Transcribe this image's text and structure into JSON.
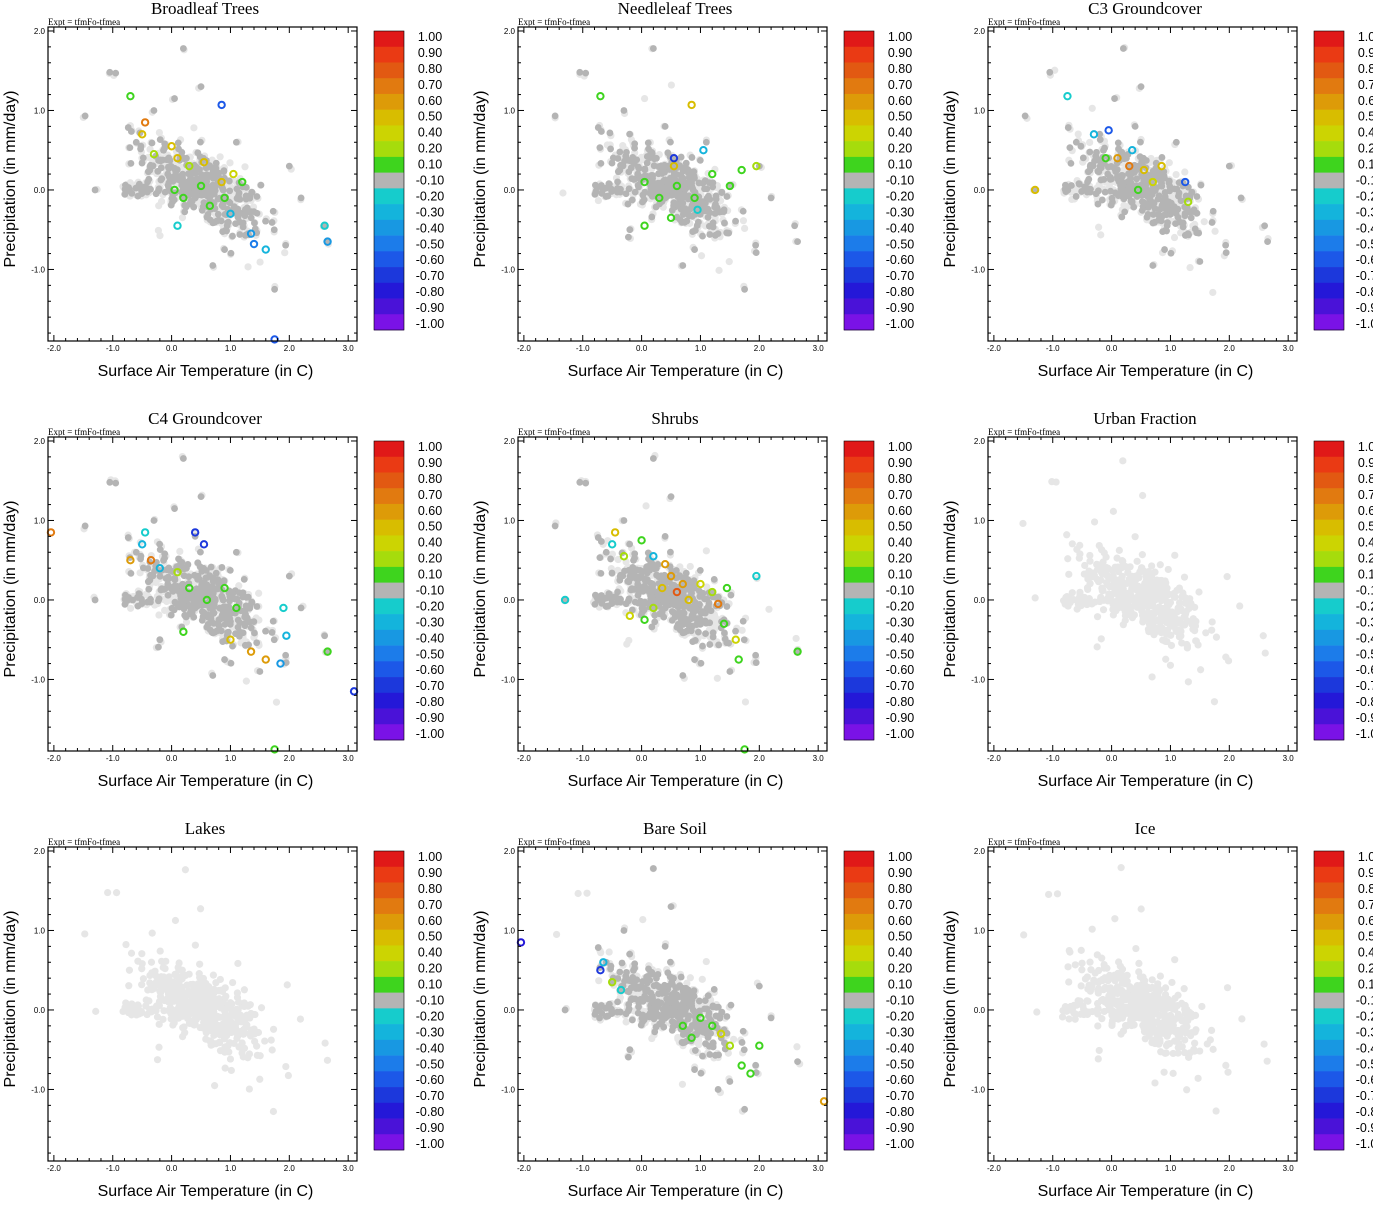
{
  "figure": {
    "expt_label": "Expt = tfmFo-tfmea",
    "xlabel": "Surface Air Temperature (in C)",
    "ylabel": "Precipitation (in mm/day)"
  },
  "chart_data": {
    "type": "scatter",
    "xlim": [
      -2.1,
      3.15
    ],
    "ylim": [
      -1.9,
      2.05
    ],
    "x_ticks": [
      -2.0,
      -1.0,
      0.0,
      1.0,
      2.0,
      3.0
    ],
    "x_tick_labels": [
      "-2.0",
      "-1.0",
      "0.0",
      "1.0",
      "2.0",
      "3.0"
    ],
    "y_ticks": [
      -1.0,
      0.0,
      1.0,
      2.0
    ],
    "y_tick_labels": [
      "-1.0",
      "0.0",
      "1.0",
      "2.0"
    ],
    "colorbar": {
      "labels": [
        "1.00",
        "0.90",
        "0.80",
        "0.70",
        "0.60",
        "0.50",
        "0.40",
        "0.20",
        "0.10",
        "-0.10",
        "-0.20",
        "-0.30",
        "-0.40",
        "-0.50",
        "-0.60",
        "-0.70",
        "-0.80",
        "-0.90",
        "-1.00"
      ],
      "colors": [
        "#e01818",
        "#ea3a14",
        "#e25912",
        "#e17a10",
        "#dd9b08",
        "#d8bd00",
        "#ccd402",
        "#a6dc0c",
        "#3ed41e",
        "#b4b4b4",
        "#16cccc",
        "#14b4dc",
        "#1898e2",
        "#1c7cea",
        "#1c58e8",
        "#1c38dc",
        "#2418d8",
        "#4a12d8",
        "#7a12e6"
      ]
    },
    "panels": [
      {
        "title": "Broadleaf Trees",
        "highlights": [
          {
            "x": -0.7,
            "y": 1.18,
            "v": 0.15
          },
          {
            "x": -0.45,
            "y": 0.85,
            "v": 0.65
          },
          {
            "x": -0.5,
            "y": 0.7,
            "v": 0.5
          },
          {
            "x": -0.3,
            "y": 0.45,
            "v": 0.3
          },
          {
            "x": 0.0,
            "y": 0.55,
            "v": 0.45
          },
          {
            "x": 0.1,
            "y": 0.4,
            "v": 0.5
          },
          {
            "x": 0.3,
            "y": 0.3,
            "v": 0.2
          },
          {
            "x": 0.55,
            "y": 0.35,
            "v": 0.5
          },
          {
            "x": 0.85,
            "y": 0.1,
            "v": 0.5
          },
          {
            "x": 1.05,
            "y": 0.2,
            "v": 0.4
          },
          {
            "x": 0.85,
            "y": 1.07,
            "v": -0.55
          },
          {
            "x": 0.05,
            "y": 0.0,
            "v": 0.15
          },
          {
            "x": 0.2,
            "y": -0.1,
            "v": 0.1
          },
          {
            "x": 0.5,
            "y": 0.05,
            "v": 0.15
          },
          {
            "x": 0.65,
            "y": -0.2,
            "v": 0.1
          },
          {
            "x": 0.9,
            "y": -0.1,
            "v": 0.12
          },
          {
            "x": 1.2,
            "y": 0.1,
            "v": 0.15
          },
          {
            "x": 0.1,
            "y": -0.45,
            "v": -0.2
          },
          {
            "x": 1.0,
            "y": -0.3,
            "v": -0.3
          },
          {
            "x": 1.35,
            "y": -0.55,
            "v": -0.4
          },
          {
            "x": 1.4,
            "y": -0.68,
            "v": -0.5
          },
          {
            "x": 1.6,
            "y": -0.75,
            "v": -0.3
          },
          {
            "x": 2.6,
            "y": -0.45,
            "v": -0.25
          },
          {
            "x": 2.65,
            "y": -0.65,
            "v": -0.45
          },
          {
            "x": 1.75,
            "y": -1.88,
            "v": -0.6
          }
        ]
      },
      {
        "title": "Needleleaf Trees",
        "highlights": [
          {
            "x": -0.7,
            "y": 1.18,
            "v": 0.15
          },
          {
            "x": 0.85,
            "y": 1.07,
            "v": 0.45
          },
          {
            "x": 0.55,
            "y": 0.3,
            "v": 0.5
          },
          {
            "x": 1.05,
            "y": 0.5,
            "v": -0.3
          },
          {
            "x": 0.05,
            "y": 0.1,
            "v": 0.15
          },
          {
            "x": 0.3,
            "y": -0.1,
            "v": 0.1
          },
          {
            "x": 0.6,
            "y": 0.05,
            "v": 0.15
          },
          {
            "x": 0.9,
            "y": -0.1,
            "v": 0.12
          },
          {
            "x": 1.2,
            "y": 0.2,
            "v": 0.15
          },
          {
            "x": 1.5,
            "y": 0.05,
            "v": 0.15
          },
          {
            "x": 1.95,
            "y": 0.3,
            "v": 0.3
          },
          {
            "x": 1.7,
            "y": 0.25,
            "v": 0.15
          },
          {
            "x": 0.05,
            "y": -0.45,
            "v": 0.15
          },
          {
            "x": 0.5,
            "y": -0.35,
            "v": 0.12
          },
          {
            "x": 0.95,
            "y": -0.25,
            "v": -0.25
          },
          {
            "x": 0.55,
            "y": 0.4,
            "v": -0.7
          }
        ]
      },
      {
        "title": "C3 Groundcover",
        "highlights": [
          {
            "x": -0.75,
            "y": 1.18,
            "v": -0.2
          },
          {
            "x": -0.05,
            "y": 0.75,
            "v": -0.55
          },
          {
            "x": -0.3,
            "y": 0.7,
            "v": -0.3
          },
          {
            "x": 0.35,
            "y": 0.5,
            "v": -0.3
          },
          {
            "x": 0.3,
            "y": 0.3,
            "v": 0.65
          },
          {
            "x": 0.1,
            "y": 0.4,
            "v": 0.55
          },
          {
            "x": -0.1,
            "y": 0.4,
            "v": 0.15
          },
          {
            "x": 0.55,
            "y": 0.25,
            "v": 0.45
          },
          {
            "x": 0.7,
            "y": 0.1,
            "v": 0.4
          },
          {
            "x": 0.85,
            "y": 0.3,
            "v": 0.5
          },
          {
            "x": -1.3,
            "y": 0.0,
            "v": 0.45
          },
          {
            "x": 0.45,
            "y": 0.0,
            "v": 0.15
          },
          {
            "x": 1.25,
            "y": 0.1,
            "v": -0.6
          },
          {
            "x": 1.3,
            "y": -0.15,
            "v": 0.3
          }
        ]
      },
      {
        "title": "C4 Groundcover",
        "highlights": [
          {
            "x": -2.05,
            "y": 0.85,
            "v": 0.7
          },
          {
            "x": -0.45,
            "y": 0.85,
            "v": -0.2
          },
          {
            "x": -0.5,
            "y": 0.7,
            "v": -0.35
          },
          {
            "x": -0.35,
            "y": 0.5,
            "v": 0.65
          },
          {
            "x": -0.7,
            "y": 0.5,
            "v": 0.55
          },
          {
            "x": -0.2,
            "y": 0.4,
            "v": -0.3
          },
          {
            "x": 0.4,
            "y": 0.85,
            "v": -0.75
          },
          {
            "x": 0.55,
            "y": 0.7,
            "v": -0.7
          },
          {
            "x": 0.1,
            "y": 0.35,
            "v": 0.2
          },
          {
            "x": 0.3,
            "y": 0.15,
            "v": 0.12
          },
          {
            "x": 0.6,
            "y": 0.0,
            "v": 0.15
          },
          {
            "x": 0.9,
            "y": 0.15,
            "v": 0.15
          },
          {
            "x": 1.1,
            "y": -0.1,
            "v": 0.12
          },
          {
            "x": 0.2,
            "y": -0.4,
            "v": 0.12
          },
          {
            "x": 1.0,
            "y": -0.5,
            "v": 0.45
          },
          {
            "x": 1.35,
            "y": -0.65,
            "v": 0.6
          },
          {
            "x": 1.6,
            "y": -0.75,
            "v": 0.55
          },
          {
            "x": 1.9,
            "y": -0.1,
            "v": -0.25
          },
          {
            "x": 1.95,
            "y": -0.45,
            "v": -0.3
          },
          {
            "x": 1.85,
            "y": -0.8,
            "v": -0.45
          },
          {
            "x": 2.65,
            "y": -0.65,
            "v": 0.15
          },
          {
            "x": 3.1,
            "y": -1.15,
            "v": -0.65
          },
          {
            "x": 1.75,
            "y": -1.88,
            "v": 0.15
          }
        ]
      },
      {
        "title": "Shrubs",
        "highlights": [
          {
            "x": -0.45,
            "y": 0.85,
            "v": 0.45
          },
          {
            "x": -0.5,
            "y": 0.7,
            "v": -0.2
          },
          {
            "x": -0.3,
            "y": 0.55,
            "v": 0.3
          },
          {
            "x": 0.0,
            "y": 0.75,
            "v": 0.15
          },
          {
            "x": 0.2,
            "y": 0.55,
            "v": -0.3
          },
          {
            "x": 0.4,
            "y": 0.45,
            "v": 0.55
          },
          {
            "x": 0.5,
            "y": 0.3,
            "v": 0.6
          },
          {
            "x": 0.7,
            "y": 0.2,
            "v": 0.55
          },
          {
            "x": 0.35,
            "y": 0.15,
            "v": 0.5
          },
          {
            "x": 0.6,
            "y": 0.1,
            "v": 0.75
          },
          {
            "x": 0.8,
            "y": 0.0,
            "v": 0.45
          },
          {
            "x": 1.0,
            "y": 0.2,
            "v": 0.35
          },
          {
            "x": 1.2,
            "y": 0.1,
            "v": 0.3
          },
          {
            "x": 1.3,
            "y": -0.05,
            "v": 0.65
          },
          {
            "x": 1.45,
            "y": 0.15,
            "v": 0.15
          },
          {
            "x": 0.2,
            "y": -0.1,
            "v": 0.2
          },
          {
            "x": 0.05,
            "y": -0.25,
            "v": 0.15
          },
          {
            "x": -0.2,
            "y": -0.2,
            "v": 0.4
          },
          {
            "x": -1.3,
            "y": 0.0,
            "v": -0.2
          },
          {
            "x": 1.95,
            "y": 0.3,
            "v": -0.25
          },
          {
            "x": 1.4,
            "y": -0.3,
            "v": 0.15
          },
          {
            "x": 1.6,
            "y": -0.5,
            "v": 0.35
          },
          {
            "x": 1.65,
            "y": -0.75,
            "v": 0.12
          },
          {
            "x": 2.65,
            "y": -0.65,
            "v": 0.15
          },
          {
            "x": 1.75,
            "y": -1.88,
            "v": 0.15
          }
        ]
      },
      {
        "title": "Urban Fraction",
        "highlights": []
      },
      {
        "title": "Lakes",
        "highlights": []
      },
      {
        "title": "Bare Soil",
        "highlights": [
          {
            "x": -2.05,
            "y": 0.85,
            "v": -0.8
          },
          {
            "x": -0.65,
            "y": 0.6,
            "v": -0.3
          },
          {
            "x": -0.7,
            "y": 0.5,
            "v": -0.75
          },
          {
            "x": -0.5,
            "y": 0.35,
            "v": 0.2
          },
          {
            "x": -0.35,
            "y": 0.25,
            "v": -0.25
          },
          {
            "x": 1.0,
            "y": -0.1,
            "v": 0.15
          },
          {
            "x": 1.2,
            "y": -0.2,
            "v": 0.12
          },
          {
            "x": 0.7,
            "y": -0.2,
            "v": 0.1
          },
          {
            "x": 1.35,
            "y": -0.3,
            "v": 0.35
          },
          {
            "x": 0.85,
            "y": -0.35,
            "v": 0.15
          },
          {
            "x": 1.5,
            "y": -0.45,
            "v": 0.25
          },
          {
            "x": 1.7,
            "y": -0.7,
            "v": 0.12
          },
          {
            "x": 1.85,
            "y": -0.8,
            "v": 0.15
          },
          {
            "x": 2.0,
            "y": -0.45,
            "v": 0.15
          },
          {
            "x": 3.1,
            "y": -1.15,
            "v": 0.55
          }
        ]
      },
      {
        "title": "Ice",
        "highlights": []
      }
    ]
  }
}
